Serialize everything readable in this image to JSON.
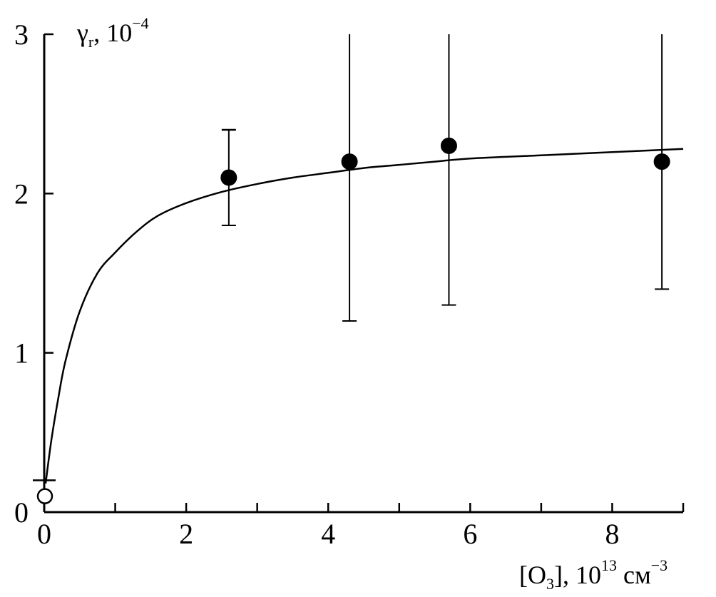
{
  "chart_data": {
    "type": "scatter",
    "title": "",
    "xlabel": {
      "open_bracket": "[O",
      "subscript": "3",
      "close": "], 10",
      "exponent": "13",
      "unit": " см",
      "unit_exponent": "−3"
    },
    "ylabel": {
      "symbol": "γ",
      "subscript": "r",
      "rest": ", 10",
      "exponent": "−4"
    },
    "xlim": [
      0,
      9
    ],
    "ylim": [
      0,
      3
    ],
    "x_ticks": [
      0,
      1,
      2,
      3,
      4,
      5,
      6,
      7,
      8,
      9
    ],
    "x_tick_labels": [
      "0",
      "2",
      "4",
      "6",
      "8"
    ],
    "x_tick_label_values": [
      0,
      2,
      4,
      6,
      8
    ],
    "y_ticks": [
      0,
      1,
      2,
      3
    ],
    "y_tick_labels": [
      "0",
      "1",
      "2",
      "3"
    ],
    "grid": false,
    "series": [
      {
        "marker": "filled-circle",
        "points": [
          {
            "x": 2.6,
            "y": 2.1,
            "err_low": 1.8,
            "err_high": 2.4
          },
          {
            "x": 4.3,
            "y": 2.2,
            "err_low": 1.2,
            "err_high": 3.0
          },
          {
            "x": 5.7,
            "y": 2.3,
            "err_low": 1.3,
            "err_high": 3.0
          },
          {
            "x": 8.7,
            "y": 2.2,
            "err_low": 1.4,
            "err_high": 3.0
          }
        ]
      },
      {
        "marker": "open-circle",
        "points": [
          {
            "x": 0.0,
            "y": 0.1,
            "err_low": 0.1,
            "err_high": 0.2
          }
        ]
      }
    ],
    "fit_curve": {
      "style": "solid-line",
      "x_range": [
        0.02,
        9.0
      ],
      "points": [
        [
          0.02,
          0.18
        ],
        [
          0.1,
          0.45
        ],
        [
          0.2,
          0.72
        ],
        [
          0.3,
          0.95
        ],
        [
          0.5,
          1.26
        ],
        [
          0.75,
          1.5
        ],
        [
          1.0,
          1.63
        ],
        [
          1.3,
          1.76
        ],
        [
          1.6,
          1.86
        ],
        [
          2.0,
          1.94
        ],
        [
          2.5,
          2.01
        ],
        [
          3.0,
          2.06
        ],
        [
          3.5,
          2.1
        ],
        [
          4.0,
          2.13
        ],
        [
          4.5,
          2.16
        ],
        [
          5.0,
          2.18
        ],
        [
          5.5,
          2.2
        ],
        [
          6.0,
          2.22
        ],
        [
          7.0,
          2.24
        ],
        [
          8.0,
          2.26
        ],
        [
          9.0,
          2.28
        ]
      ]
    }
  }
}
